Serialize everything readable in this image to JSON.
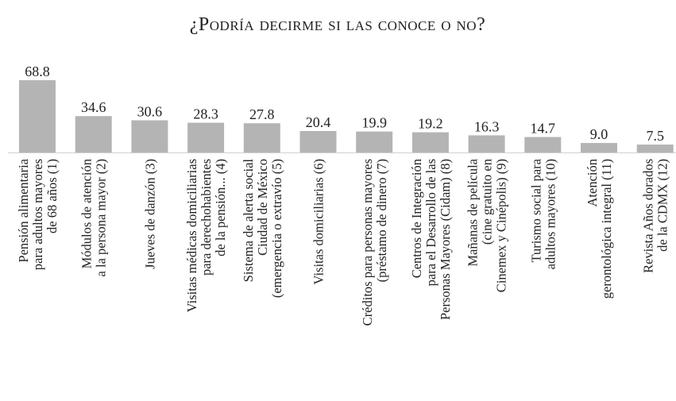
{
  "chart_data": {
    "type": "bar",
    "title": "¿Podría decirme si las conoce o no?",
    "categories": [
      "Pensión alimentaria\npara adultos mayores\nde 68 años (1)",
      "Módulos de atención\na la persona mayor (2)",
      "Jueves de danzón (3)",
      "Visitas médicas domiciliarias\npara derechohabientes\nde la pensión... (4)",
      "Sistema de alerta social\nCiudad de México\n(emergencia o extravío (5)",
      "Visitas domiciliarias (6)",
      "Créditos para personas mayores\n(préstamo de dinero (7)",
      "Centros de Integración\npara el Desarrollo de las\nPersonas Mayores (Cidam) (8)",
      "Mañanas de película\n(cine gratuito en\nCinemex y Cinépolis) (9)",
      "Turismo social para\nadultos mayores (10)",
      "Atención\ngerontológica integral (11)",
      "Revista Años dorados\nde la CDMX (12)"
    ],
    "values": [
      68.8,
      34.6,
      30.6,
      28.3,
      27.8,
      20.4,
      19.9,
      19.2,
      16.3,
      14.7,
      9.0,
      7.5
    ],
    "value_labels": [
      "68.8",
      "34.6",
      "30.6",
      "28.3",
      "27.8",
      "20.4",
      "19.9",
      "19.2",
      "16.3",
      "14.7",
      "9.0",
      "7.5"
    ],
    "color": "#b4b4b4"
  }
}
